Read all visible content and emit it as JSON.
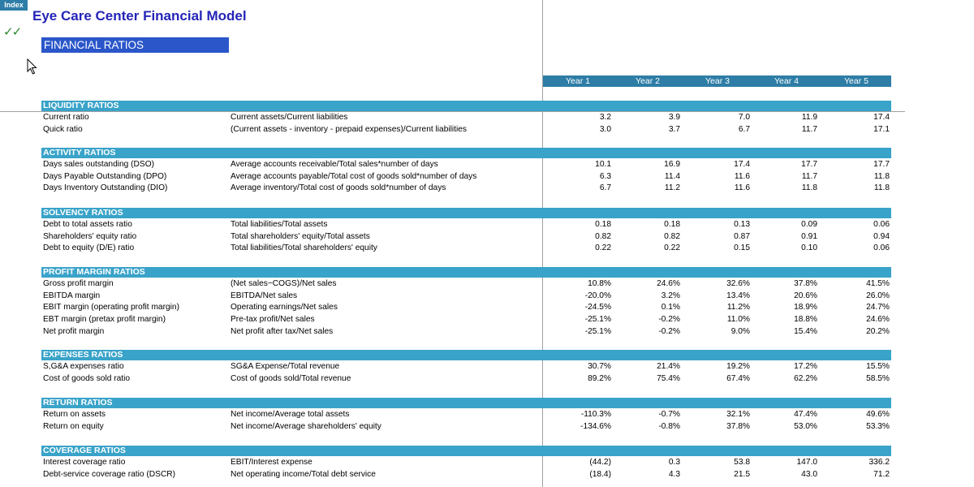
{
  "app": {
    "index_label": "Index",
    "title": "Eye Care Center Financial Model",
    "section_title": "FINANCIAL RATIOS",
    "check_icon": "double-check-icon",
    "cursor_icon": "mouse-pointer-icon"
  },
  "years": [
    "Year 1",
    "Year 2",
    "Year 3",
    "Year 4",
    "Year 5"
  ],
  "categories": [
    {
      "title": "LIQUIDITY RATIOS",
      "rows": [
        {
          "name": "Current ratio",
          "formula": "Current assets/Current liabilities",
          "values": [
            "3.2",
            "3.9",
            "7.0",
            "11.9",
            "17.4"
          ]
        },
        {
          "name": "Quick ratio",
          "formula": "(Current assets - inventory - prepaid expenses)/Current liabilities",
          "values": [
            "3.0",
            "3.7",
            "6.7",
            "11.7",
            "17.1"
          ]
        }
      ]
    },
    {
      "title": "ACTIVITY RATIOS",
      "rows": [
        {
          "name": "Days sales outstanding (DSO)",
          "formula": "Average accounts receivable/Total sales*number of days",
          "values": [
            "10.1",
            "16.9",
            "17.4",
            "17.7",
            "17.7"
          ]
        },
        {
          "name": "Days Payable Outstanding (DPO)",
          "formula": "Average accounts payable/Total cost of goods sold*number of days",
          "values": [
            "6.3",
            "11.4",
            "11.6",
            "11.7",
            "11.8"
          ]
        },
        {
          "name": "Days Inventory Outstanding (DIO)",
          "formula": "Average inventory/Total cost of goods sold*number of days",
          "values": [
            "6.7",
            "11.2",
            "11.6",
            "11.8",
            "11.8"
          ]
        }
      ]
    },
    {
      "title": "SOLVENCY RATIOS",
      "rows": [
        {
          "name": "Debt to total assets ratio",
          "formula": "Total liabilities/Total assets",
          "values": [
            "0.18",
            "0.18",
            "0.13",
            "0.09",
            "0.06"
          ]
        },
        {
          "name": "Shareholders' equity ratio",
          "formula": "Total shareholders' equity/Total assets",
          "values": [
            "0.82",
            "0.82",
            "0.87",
            "0.91",
            "0.94"
          ]
        },
        {
          "name": "Debt to equity (D/E) ratio",
          "formula": "Total liabilities/Total shareholders' equity",
          "values": [
            "0.22",
            "0.22",
            "0.15",
            "0.10",
            "0.06"
          ]
        }
      ]
    },
    {
      "title": "PROFIT MARGIN RATIOS",
      "rows": [
        {
          "name": "Gross profit margin",
          "formula": "(Net sales−COGS)/Net sales",
          "values": [
            "10.8%",
            "24.6%",
            "32.6%",
            "37.8%",
            "41.5%"
          ]
        },
        {
          "name": "EBITDA margin",
          "formula": "EBITDA/Net sales",
          "values": [
            "-20.0%",
            "3.2%",
            "13.4%",
            "20.6%",
            "26.0%"
          ]
        },
        {
          "name": "EBIT margin (operating profit margin)",
          "formula": "Operating earnings/Net sales",
          "values": [
            "-24.5%",
            "0.1%",
            "11.2%",
            "18.9%",
            "24.7%"
          ]
        },
        {
          "name": "EBT margin (pretax profit margin)",
          "formula": "Pre-tax profit/Net sales",
          "values": [
            "-25.1%",
            "-0.2%",
            "11.0%",
            "18.8%",
            "24.6%"
          ]
        },
        {
          "name": "Net profit margin",
          "formula": "Net profit after tax/Net sales",
          "values": [
            "-25.1%",
            "-0.2%",
            "9.0%",
            "15.4%",
            "20.2%"
          ]
        }
      ]
    },
    {
      "title": "EXPENSES RATIOS",
      "rows": [
        {
          "name": "S,G&A expenses ratio",
          "formula": "SG&A Expense/Total revenue",
          "values": [
            "30.7%",
            "21.4%",
            "19.2%",
            "17.2%",
            "15.5%"
          ]
        },
        {
          "name": "Cost of goods sold ratio",
          "formula": "Cost of goods sold/Total revenue",
          "values": [
            "89.2%",
            "75.4%",
            "67.4%",
            "62.2%",
            "58.5%"
          ]
        }
      ]
    },
    {
      "title": "RETURN RATIOS",
      "rows": [
        {
          "name": "Return on assets",
          "formula": "Net income/Average total assets",
          "values": [
            "-110.3%",
            "-0.7%",
            "32.1%",
            "47.4%",
            "49.6%"
          ]
        },
        {
          "name": "Return on equity",
          "formula": "Net income/Average shareholders' equity",
          "values": [
            "-134.6%",
            "-0.8%",
            "37.8%",
            "53.0%",
            "53.3%"
          ]
        }
      ]
    },
    {
      "title": "COVERAGE RATIOS",
      "rows": [
        {
          "name": "Interest coverage ratio",
          "formula": "EBIT/Interest expense",
          "values": [
            "(44.2)",
            "0.3",
            "53.8",
            "147.0",
            "336.2"
          ]
        },
        {
          "name": "Debt-service coverage ratio (DSCR)",
          "formula": "Net operating income/Total debt service",
          "values": [
            "(18.4)",
            "4.3",
            "21.5",
            "43.0",
            "71.2"
          ]
        }
      ]
    }
  ]
}
